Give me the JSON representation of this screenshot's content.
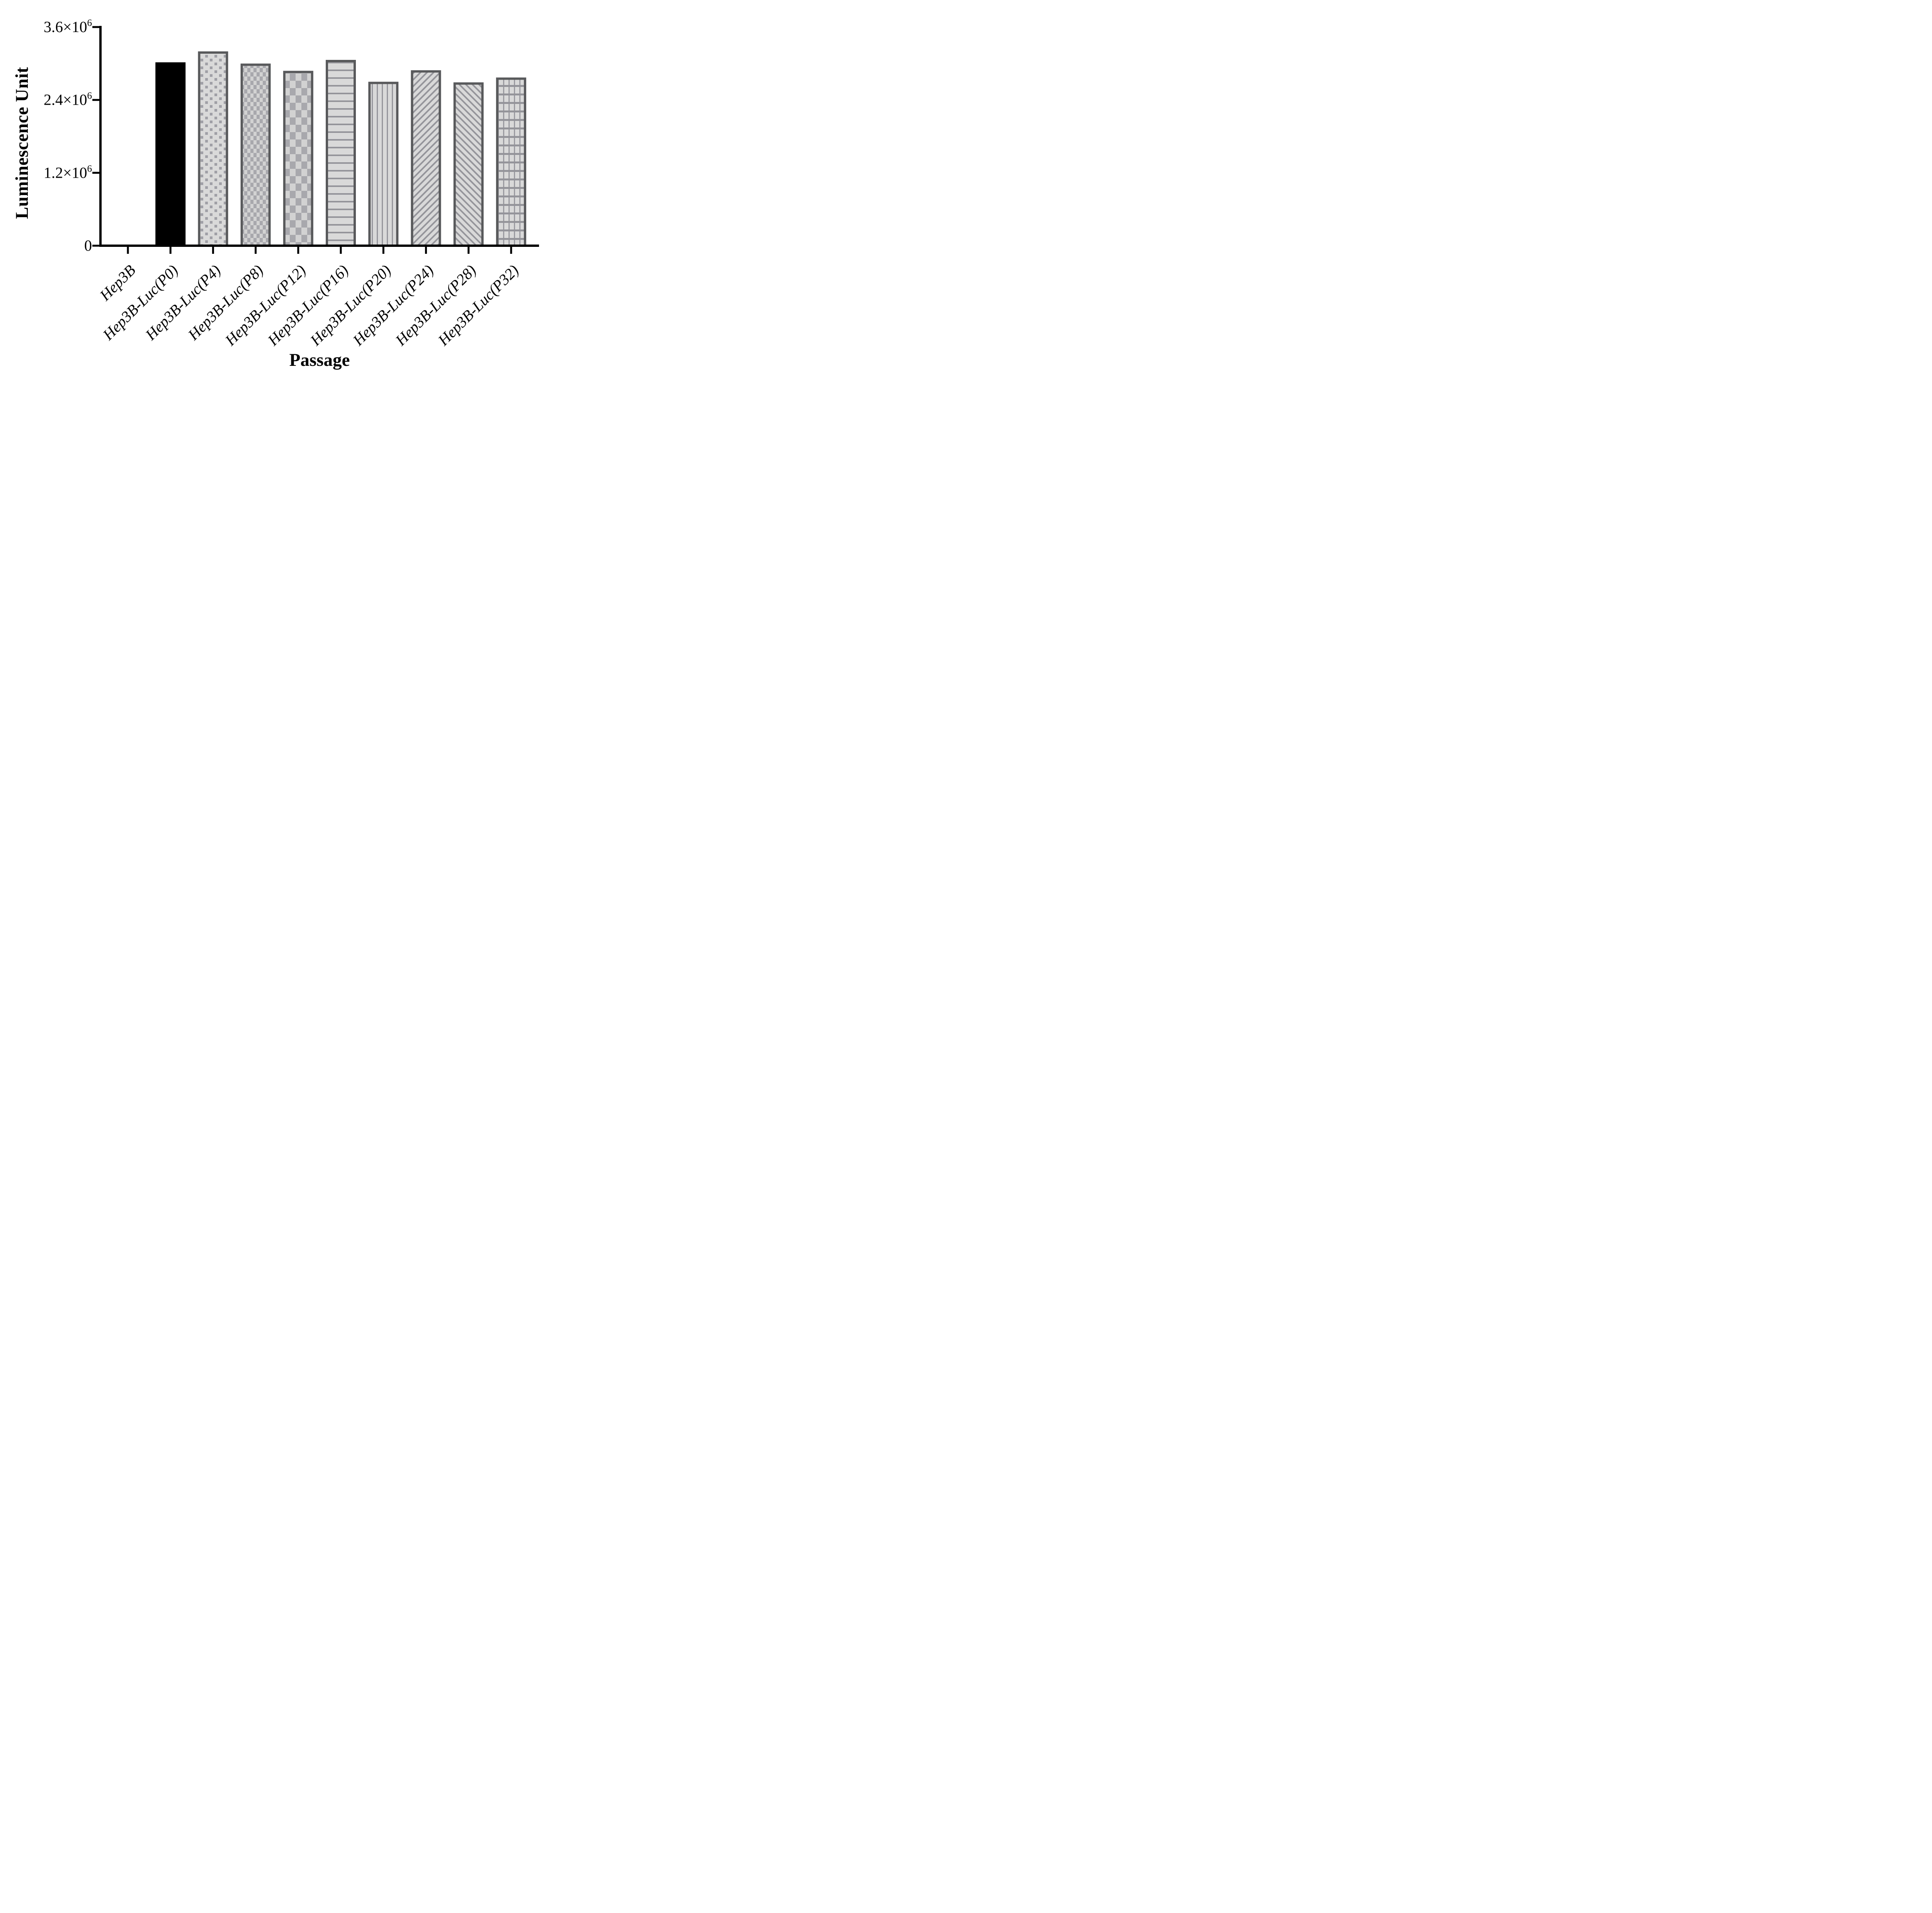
{
  "chart_data": {
    "type": "bar",
    "title": "",
    "xlabel": "Passage",
    "ylabel": "Luminescence Unit",
    "categories": [
      "Hep3B",
      "Hep3B-Luc(P0)",
      "Hep3B-Luc(P4)",
      "Hep3B-Luc(P8)",
      "Hep3B-Luc(P12)",
      "Hep3B-Luc(P16)",
      "Hep3B-Luc(P20)",
      "Hep3B-Luc(P24)",
      "Hep3B-Luc(P28)",
      "Hep3B-Luc(P32)"
    ],
    "values": [
      0,
      3000000,
      3180000,
      2980000,
      2860000,
      3040000,
      2680000,
      2870000,
      2670000,
      2750000
    ],
    "bar_patterns": [
      "none",
      "solid-black",
      "dots",
      "checker-fine",
      "checker-coarse",
      "hlines",
      "vlines",
      "diag-forward",
      "diag-backward",
      "grid"
    ],
    "ylim": [
      0,
      3600000
    ],
    "y_ticks": [
      {
        "value": 0,
        "base": "0",
        "exp": ""
      },
      {
        "value": 1200000,
        "base": "1.2×10",
        "exp": "6"
      },
      {
        "value": 2400000,
        "base": "2.4×10",
        "exp": "6"
      },
      {
        "value": 3600000,
        "base": "3.6×10",
        "exp": "6"
      }
    ],
    "grid": false,
    "legend": "none",
    "colors": {
      "axis": "#000000",
      "bar_border": "#58595b",
      "bar_fill_light": "#d9d9d9",
      "pattern_foreground": "#a0a0a6",
      "pattern_line": "#94949a",
      "solid_bar": "#000000",
      "background": "#ffffff"
    }
  }
}
